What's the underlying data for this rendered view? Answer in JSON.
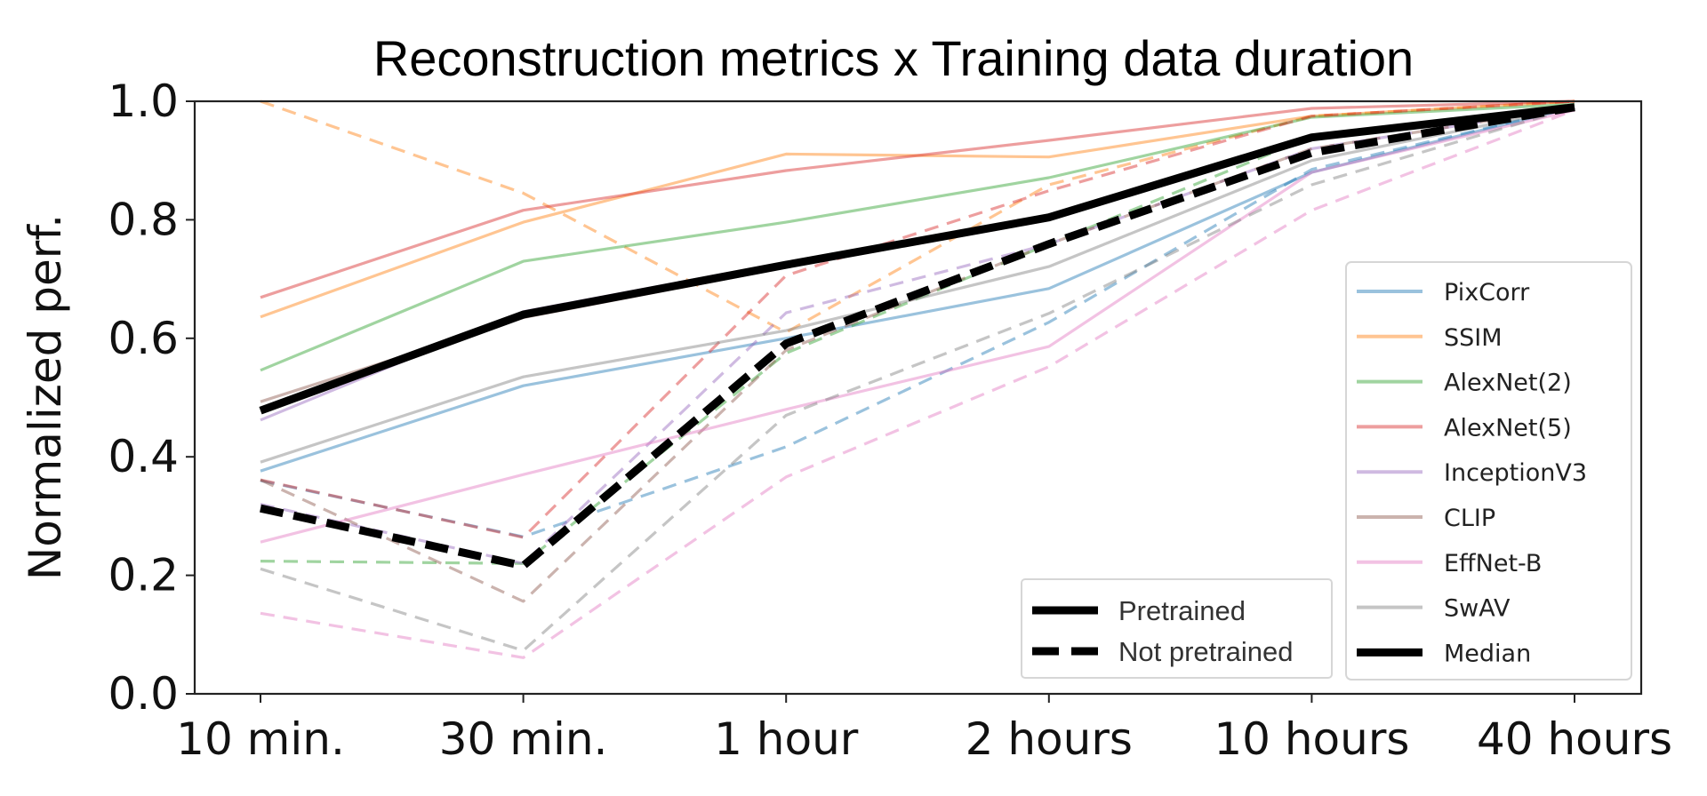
{
  "chart_data": {
    "type": "line",
    "title": "Reconstruction metrics x Training data duration",
    "xlabel": "",
    "ylabel": "Normalized perf.",
    "categories": [
      "10 min.",
      "30 min.",
      "1 hour",
      "2 hours",
      "10 hours",
      "40 hours"
    ],
    "ylim": [
      0.0,
      1.0
    ],
    "yticks": [
      0.0,
      0.2,
      0.4,
      0.6,
      0.8,
      1.0
    ],
    "ytick_labels": [
      "0.0",
      "0.2",
      "0.4",
      "0.6",
      "0.8",
      "1.0"
    ],
    "grid": false,
    "series": [
      {
        "name": "PixCorr",
        "color": "#1f77b4",
        "style": "solid",
        "values": [
          0.376,
          0.52,
          0.6,
          0.684,
          0.88,
          0.99
        ]
      },
      {
        "name": "PixCorr",
        "color": "#1f77b4",
        "style": "dashed",
        "values": [
          0.36,
          0.265,
          0.417,
          0.627,
          0.885,
          0.99
        ]
      },
      {
        "name": "SSIM",
        "color": "#ff7f0e",
        "style": "solid",
        "values": [
          0.636,
          0.796,
          0.911,
          0.906,
          0.975,
          1.0
        ]
      },
      {
        "name": "SSIM",
        "color": "#ff7f0e",
        "style": "dashed",
        "values": [
          1.0,
          0.845,
          0.61,
          0.859,
          0.975,
          1.0
        ]
      },
      {
        "name": "AlexNet(2)",
        "color": "#2ca02c",
        "style": "solid",
        "values": [
          0.546,
          0.73,
          0.796,
          0.871,
          0.973,
          0.995
        ]
      },
      {
        "name": "AlexNet(2)",
        "color": "#2ca02c",
        "style": "dashed",
        "values": [
          0.224,
          0.22,
          0.575,
          0.759,
          0.94,
          0.995
        ]
      },
      {
        "name": "AlexNet(5)",
        "color": "#d62728",
        "style": "solid",
        "values": [
          0.669,
          0.816,
          0.883,
          0.934,
          0.988,
          1.0
        ]
      },
      {
        "name": "AlexNet(5)",
        "color": "#d62728",
        "style": "dashed",
        "values": [
          0.361,
          0.264,
          0.706,
          0.849,
          0.975,
          1.0
        ]
      },
      {
        "name": "InceptionV3",
        "color": "#9467bd",
        "style": "solid",
        "values": [
          0.462,
          0.645,
          0.728,
          0.806,
          0.94,
          0.99
        ]
      },
      {
        "name": "InceptionV3",
        "color": "#9467bd",
        "style": "dashed",
        "values": [
          0.32,
          0.22,
          0.643,
          0.759,
          0.92,
          0.99
        ]
      },
      {
        "name": "CLIP",
        "color": "#8c564b",
        "style": "solid",
        "values": [
          0.493,
          0.635,
          0.72,
          0.8,
          0.94,
          0.99
        ]
      },
      {
        "name": "CLIP",
        "color": "#8c564b",
        "style": "dashed",
        "values": [
          0.361,
          0.156,
          0.58,
          0.759,
          0.92,
          0.99
        ]
      },
      {
        "name": "EffNet-B",
        "color": "#e377c2",
        "style": "solid",
        "values": [
          0.256,
          0.37,
          0.48,
          0.586,
          0.88,
          0.985
        ]
      },
      {
        "name": "EffNet-B",
        "color": "#e377c2",
        "style": "dashed",
        "values": [
          0.136,
          0.061,
          0.366,
          0.552,
          0.816,
          0.985
        ]
      },
      {
        "name": "SwAV",
        "color": "#7f7f7f",
        "style": "solid",
        "values": [
          0.391,
          0.535,
          0.613,
          0.721,
          0.9,
          0.99
        ]
      },
      {
        "name": "SwAV",
        "color": "#7f7f7f",
        "style": "dashed",
        "values": [
          0.211,
          0.073,
          0.47,
          0.642,
          0.859,
          0.99
        ]
      },
      {
        "name": "Median",
        "color": "#000000",
        "style": "solid",
        "values": [
          0.478,
          0.64,
          0.724,
          0.804,
          0.939,
          0.99
        ]
      },
      {
        "name": "Median",
        "color": "#000000",
        "style": "dashed",
        "values": [
          0.313,
          0.216,
          0.591,
          0.759,
          0.913,
          0.99
        ]
      }
    ],
    "legend": {
      "placement": "right",
      "entries": [
        {
          "label": "PixCorr",
          "color": "#1f77b4"
        },
        {
          "label": "SSIM",
          "color": "#ff7f0e"
        },
        {
          "label": "AlexNet(2)",
          "color": "#2ca02c"
        },
        {
          "label": "AlexNet(5)",
          "color": "#d62728"
        },
        {
          "label": "InceptionV3",
          "color": "#9467bd"
        },
        {
          "label": "CLIP",
          "color": "#8c564b"
        },
        {
          "label": "EffNet-B",
          "color": "#e377c2"
        },
        {
          "label": "SwAV",
          "color": "#7f7f7f"
        },
        {
          "label": "Median",
          "color": "#000000"
        }
      ]
    },
    "style_legend": {
      "placement": "bottom-right",
      "entries": [
        {
          "label": "Pretrained",
          "style": "solid"
        },
        {
          "label": "Not pretrained",
          "style": "dashed"
        }
      ]
    }
  }
}
